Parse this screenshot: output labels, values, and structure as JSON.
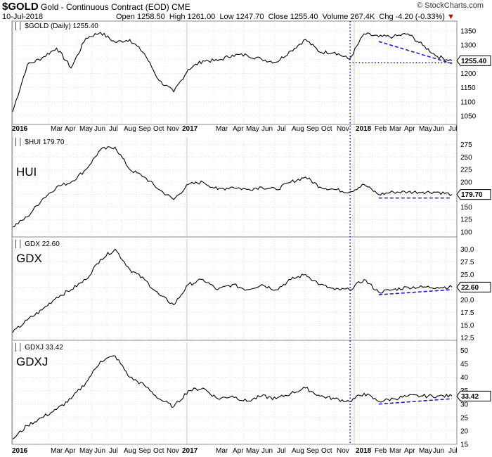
{
  "header": {
    "symbol": "$GOLD",
    "name": "Gold - Continuous Contract (EOD) CME",
    "date": "10-Jul-2018",
    "open": "Open 1258.50",
    "high": "High 1261.00",
    "low": "Low 1247.70",
    "close": "Close 1255.40",
    "volume": "Volume 267.4K",
    "change": "Chg -4.20 (-0.33%)",
    "copyright": "© StockCharts.com"
  },
  "x_axis": {
    "labels": [
      "2016",
      "Mar",
      "Apr",
      "May",
      "Jun",
      "Jul",
      "Aug",
      "Sep",
      "Oct",
      "Nov",
      "2017",
      "Mar",
      "Apr",
      "May",
      "Jun",
      "Jul",
      "Aug",
      "Sep",
      "Oct",
      "Nov",
      "2018",
      "Feb",
      "Mar",
      "Apr",
      "May",
      "Jun",
      "Jul"
    ],
    "year_labels": [
      "2016",
      "2017",
      "2018"
    ]
  },
  "colors": {
    "price_line": "#000000",
    "trendline": "#1a1adc",
    "grid": "#cfcfcf",
    "change_negative": "#c00000"
  },
  "chart_data": [
    {
      "type": "line",
      "legend": "$GOLD (Daily) 1255.40",
      "label": "",
      "last_value": "1255.40",
      "ylim": [
        1020,
        1385
      ],
      "yticks": [
        1050,
        1100,
        1150,
        1200,
        1250,
        1300,
        1350
      ],
      "x": [
        "2016-01",
        "2016-02",
        "2016-03",
        "2016-04",
        "2016-05",
        "2016-06",
        "2016-07",
        "2016-08",
        "2016-09",
        "2016-10",
        "2016-11",
        "2016-12",
        "2017-01",
        "2017-02",
        "2017-03",
        "2017-04",
        "2017-05",
        "2017-06",
        "2017-07",
        "2017-08",
        "2017-09",
        "2017-10",
        "2017-11",
        "2017-12",
        "2018-01",
        "2018-02",
        "2018-03",
        "2018-04",
        "2018-05",
        "2018-06",
        "2018-07"
      ],
      "values": [
        1065,
        1230,
        1255,
        1290,
        1220,
        1325,
        1345,
        1310,
        1320,
        1270,
        1175,
        1135,
        1215,
        1245,
        1245,
        1265,
        1265,
        1250,
        1240,
        1280,
        1320,
        1275,
        1275,
        1250,
        1340,
        1330,
        1330,
        1340,
        1300,
        1260,
        1245
      ],
      "trendlines": [
        {
          "style": "dashed",
          "from": [
            "2018-02",
            1313
          ],
          "to": [
            "2018-07",
            1235
          ]
        },
        {
          "style": "dotted",
          "from": [
            "2017-12",
            1238
          ],
          "to": [
            "2018-07",
            1238
          ]
        }
      ]
    },
    {
      "type": "line",
      "legend": "$HUI 179.70",
      "label": "HUI",
      "last_value": "179.70",
      "ylim": [
        90,
        290
      ],
      "yticks": [
        100,
        125,
        150,
        175,
        200,
        225,
        250,
        275
      ],
      "x": [
        "2016-01",
        "2016-02",
        "2016-03",
        "2016-04",
        "2016-05",
        "2016-06",
        "2016-07",
        "2016-08",
        "2016-09",
        "2016-10",
        "2016-11",
        "2016-12",
        "2017-01",
        "2017-02",
        "2017-03",
        "2017-04",
        "2017-05",
        "2017-06",
        "2017-07",
        "2017-08",
        "2017-09",
        "2017-10",
        "2017-11",
        "2017-12",
        "2018-01",
        "2018-02",
        "2018-03",
        "2018-04",
        "2018-05",
        "2018-06",
        "2018-07"
      ],
      "values": [
        110,
        130,
        165,
        190,
        200,
        225,
        265,
        270,
        225,
        210,
        185,
        165,
        195,
        200,
        185,
        190,
        185,
        190,
        185,
        200,
        210,
        190,
        185,
        180,
        195,
        175,
        180,
        180,
        180,
        180,
        175
      ],
      "trendlines": [
        {
          "style": "dashed",
          "from": [
            "2018-02",
            168
          ],
          "to": [
            "2018-07",
            168
          ]
        }
      ]
    },
    {
      "type": "line",
      "legend": "GDX 22.60",
      "label": "GDX",
      "last_value": "22.60",
      "ylim": [
        12,
        32
      ],
      "yticks": [
        12.5,
        15.0,
        17.5,
        20.0,
        22.5,
        25.0,
        27.5,
        30.0
      ],
      "x": [
        "2016-01",
        "2016-02",
        "2016-03",
        "2016-04",
        "2016-05",
        "2016-06",
        "2016-07",
        "2016-08",
        "2016-09",
        "2016-10",
        "2016-11",
        "2016-12",
        "2017-01",
        "2017-02",
        "2017-03",
        "2017-04",
        "2017-05",
        "2017-06",
        "2017-07",
        "2017-08",
        "2017-09",
        "2017-10",
        "2017-11",
        "2017-12",
        "2018-01",
        "2018-02",
        "2018-03",
        "2018-04",
        "2018-05",
        "2018-06",
        "2018-07"
      ],
      "values": [
        13.5,
        16,
        18,
        20.5,
        22,
        24,
        28,
        30,
        26,
        24,
        21,
        19,
        23,
        24,
        22,
        23,
        22,
        23,
        22,
        24,
        25,
        23,
        22,
        22,
        24,
        21.5,
        22,
        22.5,
        22.5,
        22.5,
        22.5
      ],
      "trendlines": [
        {
          "style": "dashed",
          "from": [
            "2018-02",
            21
          ],
          "to": [
            "2018-07",
            22
          ]
        }
      ]
    },
    {
      "type": "line",
      "legend": "GDXJ 33.42",
      "label": "GDXJ",
      "last_value": "33.42",
      "ylim": [
        15,
        53
      ],
      "yticks": [
        15,
        20,
        25,
        30,
        35,
        40,
        45,
        50
      ],
      "x": [
        "2016-01",
        "2016-02",
        "2016-03",
        "2016-04",
        "2016-05",
        "2016-06",
        "2016-07",
        "2016-08",
        "2016-09",
        "2016-10",
        "2016-11",
        "2016-12",
        "2017-01",
        "2017-02",
        "2017-03",
        "2017-04",
        "2017-05",
        "2017-06",
        "2017-07",
        "2017-08",
        "2017-09",
        "2017-10",
        "2017-11",
        "2017-12",
        "2018-01",
        "2018-02",
        "2018-03",
        "2018-04",
        "2018-05",
        "2018-06",
        "2018-07"
      ],
      "values": [
        17,
        22,
        25,
        28,
        32,
        38,
        46,
        48,
        40,
        37,
        32,
        29,
        35,
        36,
        32,
        33,
        31,
        33,
        32,
        34,
        36,
        33,
        32,
        31,
        34,
        31,
        32,
        33,
        33,
        33,
        33
      ],
      "trendlines": [
        {
          "style": "dashed",
          "from": [
            "2018-02",
            30
          ],
          "to": [
            "2018-07",
            32
          ]
        }
      ]
    }
  ]
}
